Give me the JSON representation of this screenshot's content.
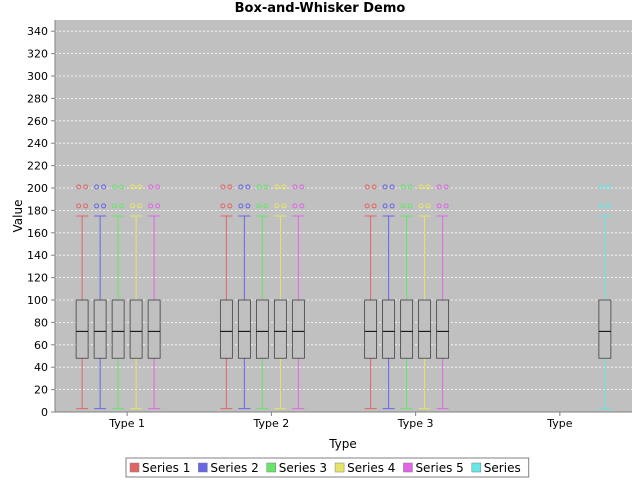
{
  "chart_data": {
    "type": "box",
    "title": "Box-and-Whisker Demo",
    "xlabel": "Type",
    "ylabel": "Value",
    "ylim": [
      0,
      350
    ],
    "yticks": [
      0,
      20,
      40,
      60,
      80,
      100,
      120,
      140,
      160,
      180,
      200,
      220,
      240,
      260,
      280,
      300,
      320,
      340
    ],
    "categories": [
      "Type 1",
      "Type 2",
      "Type 3",
      "Type"
    ],
    "grid": true,
    "legend_position": "bottom",
    "series": [
      {
        "name": "Series 1",
        "color": "#e06666",
        "boxes": [
          {
            "min": 3,
            "q1": 48,
            "median": 72,
            "q3": 100,
            "max": 175,
            "outliers": [
              184,
              201
            ]
          },
          {
            "min": 3,
            "q1": 48,
            "median": 72,
            "q3": 100,
            "max": 175,
            "outliers": [
              184,
              201
            ]
          },
          {
            "min": 3,
            "q1": 48,
            "median": 72,
            "q3": 100,
            "max": 175,
            "outliers": [
              184,
              201
            ]
          },
          null
        ]
      },
      {
        "name": "Series 2",
        "color": "#6666e6",
        "boxes": [
          {
            "min": 3,
            "q1": 48,
            "median": 72,
            "q3": 100,
            "max": 175,
            "outliers": [
              184,
              201
            ]
          },
          {
            "min": 3,
            "q1": 48,
            "median": 72,
            "q3": 100,
            "max": 175,
            "outliers": [
              184,
              201
            ]
          },
          {
            "min": 3,
            "q1": 48,
            "median": 72,
            "q3": 100,
            "max": 175,
            "outliers": [
              184,
              201
            ]
          },
          null
        ]
      },
      {
        "name": "Series 3",
        "color": "#66e666",
        "boxes": [
          {
            "min": 3,
            "q1": 48,
            "median": 72,
            "q3": 100,
            "max": 175,
            "outliers": [
              184,
              201
            ]
          },
          {
            "min": 3,
            "q1": 48,
            "median": 72,
            "q3": 100,
            "max": 175,
            "outliers": [
              184,
              201
            ]
          },
          {
            "min": 3,
            "q1": 48,
            "median": 72,
            "q3": 100,
            "max": 175,
            "outliers": [
              184,
              201
            ]
          },
          null
        ]
      },
      {
        "name": "Series 4",
        "color": "#e6e666",
        "boxes": [
          {
            "min": 3,
            "q1": 48,
            "median": 72,
            "q3": 100,
            "max": 175,
            "outliers": [
              184,
              201
            ]
          },
          {
            "min": 3,
            "q1": 48,
            "median": 72,
            "q3": 100,
            "max": 175,
            "outliers": [
              184,
              201
            ]
          },
          {
            "min": 3,
            "q1": 48,
            "median": 72,
            "q3": 100,
            "max": 175,
            "outliers": [
              184,
              201
            ]
          },
          null
        ]
      },
      {
        "name": "Series 5",
        "color": "#e066e6",
        "boxes": [
          {
            "min": 3,
            "q1": 48,
            "median": 72,
            "q3": 100,
            "max": 175,
            "outliers": [
              184,
              201
            ]
          },
          {
            "min": 3,
            "q1": 48,
            "median": 72,
            "q3": 100,
            "max": 175,
            "outliers": [
              184,
              201
            ]
          },
          {
            "min": 3,
            "q1": 48,
            "median": 72,
            "q3": 100,
            "max": 175,
            "outliers": [
              184,
              201
            ]
          },
          null
        ]
      },
      {
        "name": "Series",
        "color": "#66e6e6",
        "boxes": [
          null,
          null,
          null,
          {
            "min": 3,
            "q1": 48,
            "median": 72,
            "q3": 100,
            "max": 175,
            "outliers": [
              184,
              201
            ]
          }
        ]
      }
    ]
  }
}
